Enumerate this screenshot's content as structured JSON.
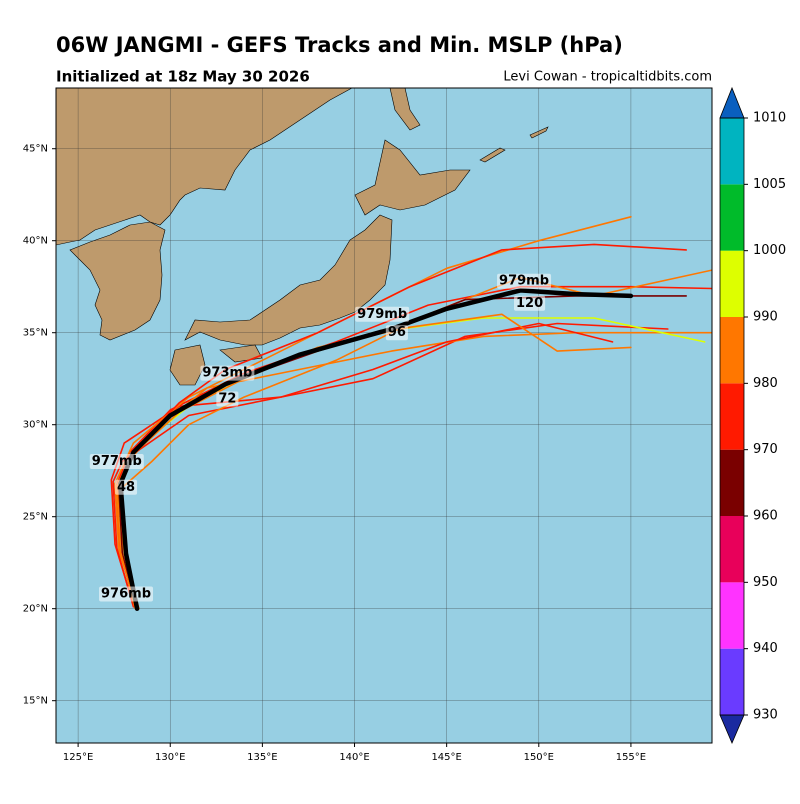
{
  "map": {
    "title": "06W JANGMI - GEFS Tracks and Min. MSLP (hPa)",
    "subtitle": "Initialized at 18z May 30 2026",
    "credit": "Levi Cowan - tropicaltidbits.com",
    "xlim": [
      123.8,
      159.4
    ],
    "ylim": [
      12.7,
      48.3
    ],
    "xticks": [
      {
        "value": 125,
        "label": "125°E"
      },
      {
        "value": 130,
        "label": "130°E"
      },
      {
        "value": 135,
        "label": "135°E"
      },
      {
        "value": 140,
        "label": "140°E"
      },
      {
        "value": 145,
        "label": "145°E"
      },
      {
        "value": 150,
        "label": "150°E"
      },
      {
        "value": 155,
        "label": "155°E"
      }
    ],
    "yticks": [
      {
        "value": 15,
        "label": "15°N"
      },
      {
        "value": 20,
        "label": "20°N"
      },
      {
        "value": 25,
        "label": "25°N"
      },
      {
        "value": 30,
        "label": "30°N"
      },
      {
        "value": 35,
        "label": "35°N"
      },
      {
        "value": 40,
        "label": "40°N"
      },
      {
        "value": 45,
        "label": "45°N"
      }
    ],
    "grid": true,
    "ocean_color": "#97cfe3",
    "land_color": "#be9a6c",
    "members": [
      {
        "color": "#ff1a00",
        "lon": [
          128.2,
          127.3,
          127.0,
          127.8,
          130.0,
          134.0,
          139.0,
          144.0,
          149.0,
          155.0,
          159.4
        ],
        "lat": [
          20.0,
          23.0,
          26.5,
          28.5,
          30.8,
          32.8,
          34.5,
          36.5,
          37.5,
          37.5,
          37.4
        ]
      },
      {
        "color": "#ff1a00",
        "lon": [
          128.0,
          127.0,
          126.8,
          127.5,
          130.5,
          136.0,
          141.0,
          146.0,
          151.0,
          157.0
        ],
        "lat": [
          20.2,
          23.5,
          27.0,
          29.0,
          31.0,
          31.5,
          32.5,
          34.8,
          35.5,
          35.2
        ]
      },
      {
        "color": "#ff7700",
        "lon": [
          128.2,
          127.2,
          127.0,
          128.0,
          131.0,
          135.0,
          140.0,
          145.0,
          150.0,
          155.0
        ],
        "lat": [
          20.0,
          23.2,
          26.8,
          29.0,
          31.5,
          33.5,
          36.0,
          38.5,
          40.0,
          41.3
        ]
      },
      {
        "color": "#ff1a00",
        "lon": [
          128.1,
          127.4,
          127.2,
          128.2,
          130.5,
          133.0,
          138.0,
          143.0,
          148.0,
          153.0,
          158.0
        ],
        "lat": [
          20.1,
          23.0,
          26.5,
          28.8,
          31.2,
          33.0,
          35.0,
          37.5,
          39.5,
          39.8,
          39.5
        ]
      },
      {
        "color": "#ff7700",
        "lon": [
          128.3,
          127.5,
          127.1,
          127.9,
          129.5,
          132.0,
          137.0,
          142.0,
          147.0,
          152.0,
          159.4
        ],
        "lat": [
          20.0,
          23.1,
          26.7,
          28.2,
          30.0,
          32.0,
          33.0,
          34.0,
          34.8,
          35.0,
          35.0
        ]
      },
      {
        "color": "#ddff00",
        "lon": [
          128.2,
          127.4,
          127.2,
          128.0,
          131.0,
          135.0,
          141.0,
          147.0,
          153.0,
          159.0
        ],
        "lat": [
          20.0,
          23.0,
          26.6,
          28.6,
          31.0,
          33.0,
          35.0,
          35.8,
          35.8,
          34.5
        ]
      },
      {
        "color": "#ff1a00",
        "lon": [
          128.0,
          127.1,
          126.9,
          127.4,
          131.0,
          136.0,
          141.0,
          145.0,
          150.0,
          154.0
        ],
        "lat": [
          20.1,
          23.3,
          26.9,
          28.0,
          30.5,
          31.5,
          33.0,
          34.5,
          35.5,
          34.5
        ]
      },
      {
        "color": "#ff7700",
        "lon": [
          128.2,
          127.5,
          127.3,
          129.0,
          131.0,
          134.0,
          139.0,
          144.0,
          149.0,
          153.0,
          159.4
        ],
        "lat": [
          20.0,
          23.0,
          26.5,
          28.0,
          30.0,
          31.5,
          33.5,
          36.0,
          38.0,
          37.0,
          38.4
        ]
      },
      {
        "color": "#7a0000",
        "lon": [
          128.2,
          127.4,
          127.2,
          128.1,
          130.2,
          133.5,
          138.0,
          142.5,
          146.0,
          152.0,
          158.0
        ],
        "lat": [
          20.0,
          23.0,
          26.7,
          28.6,
          30.6,
          32.4,
          34.0,
          35.4,
          36.8,
          37.0,
          37.0
        ]
      },
      {
        "color": "#ff7700",
        "lon": [
          128.1,
          127.3,
          127.1,
          128.0,
          130.5,
          134.0,
          138.0,
          143.0,
          148.0,
          151.0,
          155.0
        ],
        "lat": [
          20.0,
          23.1,
          26.6,
          28.4,
          30.7,
          32.5,
          34.2,
          35.3,
          36.0,
          34.0,
          34.2
        ]
      }
    ],
    "mean_track": {
      "color": "#000000",
      "lon": [
        128.2,
        127.6,
        127.3,
        128.0,
        130.0,
        133.0,
        137.0,
        142.0,
        145.0,
        149.0,
        152.0,
        155.0
      ],
      "lat": [
        20.0,
        23.0,
        26.8,
        28.5,
        30.5,
        32.2,
        33.8,
        35.2,
        36.3,
        37.3,
        37.1,
        37.0
      ]
    },
    "labels": [
      {
        "text": "976mb",
        "lon": 127.6,
        "lat": 20.8
      },
      {
        "text": "977mb",
        "lon": 127.1,
        "lat": 28.0
      },
      {
        "text": "48",
        "lon": 127.6,
        "lat": 26.6
      },
      {
        "text": "973mb",
        "lon": 133.1,
        "lat": 32.8
      },
      {
        "text": "72",
        "lon": 133.1,
        "lat": 31.4
      },
      {
        "text": "979mb",
        "lon": 141.5,
        "lat": 36.0
      },
      {
        "text": "96",
        "lon": 142.3,
        "lat": 35.0
      },
      {
        "text": "979mb",
        "lon": 149.2,
        "lat": 37.8
      },
      {
        "text": "120",
        "lon": 149.5,
        "lat": 36.6
      }
    ],
    "colorbar": {
      "levels": [
        930,
        940,
        950,
        960,
        970,
        980,
        990,
        1000,
        1005,
        1010
      ],
      "colors": [
        "#6a3bff",
        "#ff33ff",
        "#e8005a",
        "#7a0000",
        "#ff1a00",
        "#ff7700",
        "#ddff00",
        "#00bb2a",
        "#00b4c0"
      ],
      "under_color": "#1a2aa0",
      "over_color": "#0a5fbf"
    }
  }
}
